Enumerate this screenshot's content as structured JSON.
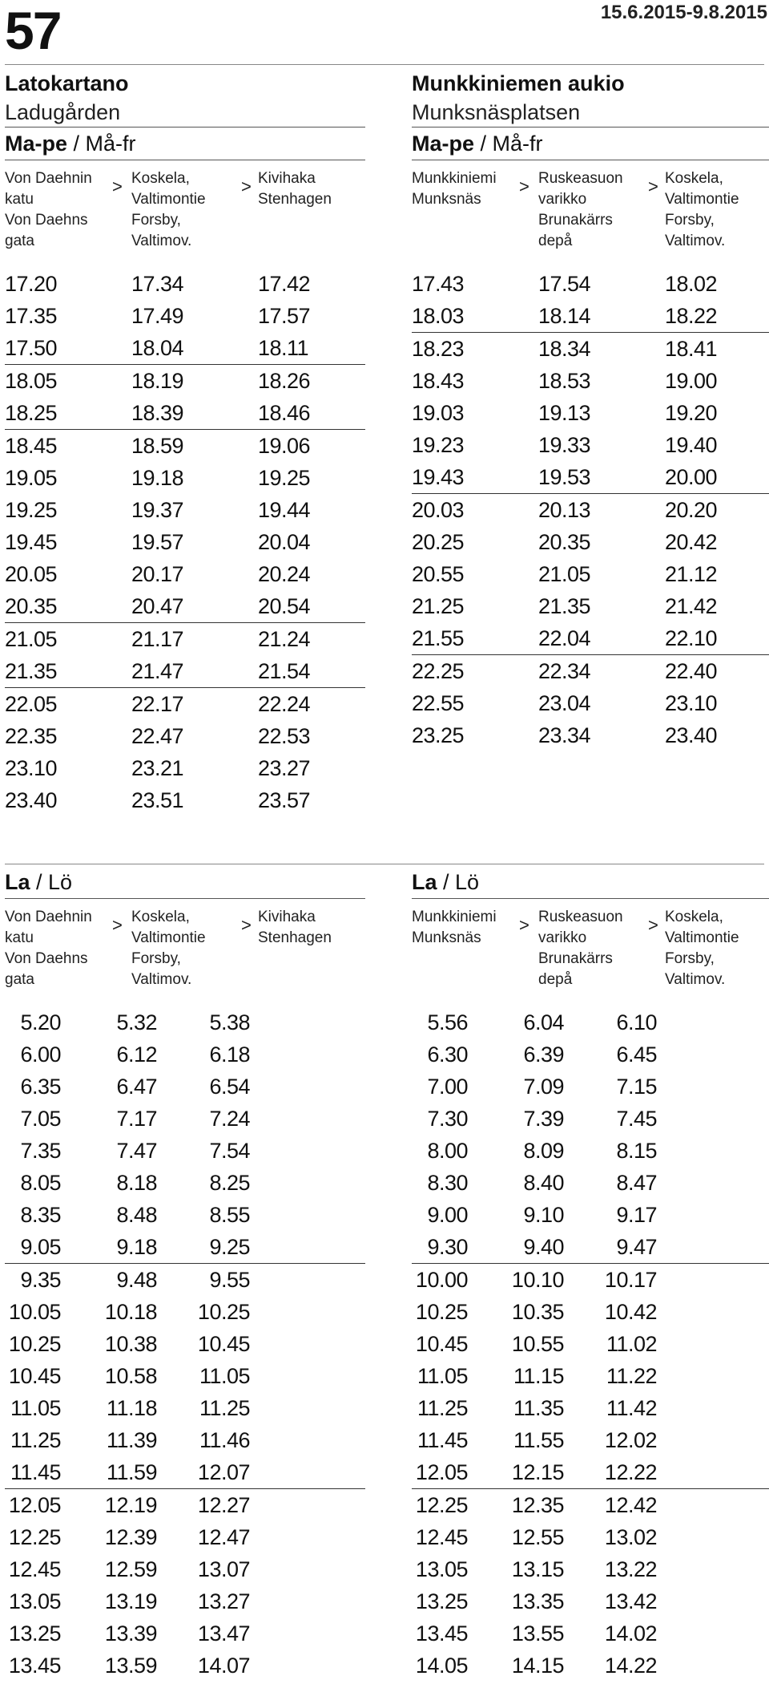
{
  "header": {
    "route": "57",
    "period": "15.6.2015-9.8.2015"
  },
  "left_stop": {
    "fi": "Latokartano",
    "sv": "Ladugården"
  },
  "right_stop": {
    "fi": "Munkkiniemen aukio",
    "sv": "Munksnäsplatsen"
  },
  "weekday": {
    "fi": "Ma-pe",
    "sep": " / ",
    "sv": "Må-fr"
  },
  "saturday": {
    "fi": "La",
    "sep": " / ",
    "sv": "Lö"
  },
  "arrow": ">",
  "left_headers": [
    [
      "Von Daehnin",
      "katu",
      "Von Daehns",
      "gata"
    ],
    [
      "Koskela,",
      "Valtimontie",
      "Forsby,",
      "Valtimov."
    ],
    [
      "Kivihaka",
      "Stenhagen"
    ]
  ],
  "right_headers": [
    [
      "Munkkiniemi",
      "Munksnäs"
    ],
    [
      "Ruskeasuon",
      "varikko",
      "Brunakärrs",
      "depå"
    ],
    [
      "Koskela,",
      "Valtimontie",
      "Forsby,",
      "Valtimov."
    ]
  ],
  "weekday_left_rows": [
    [
      "17.20",
      "17.34",
      "17.42"
    ],
    [
      "17.35",
      "17.49",
      "17.57"
    ],
    [
      "17.50",
      "18.04",
      "18.11"
    ],
    [
      "18.05",
      "18.19",
      "18.26"
    ],
    [
      "18.25",
      "18.39",
      "18.46"
    ],
    [
      "18.45",
      "18.59",
      "19.06"
    ],
    [
      "19.05",
      "19.18",
      "19.25"
    ],
    [
      "19.25",
      "19.37",
      "19.44"
    ],
    [
      "19.45",
      "19.57",
      "20.04"
    ],
    [
      "20.05",
      "20.17",
      "20.24"
    ],
    [
      "20.35",
      "20.47",
      "20.54"
    ],
    [
      "21.05",
      "21.17",
      "21.24"
    ],
    [
      "21.35",
      "21.47",
      "21.54"
    ],
    [
      "22.05",
      "22.17",
      "22.24"
    ],
    [
      "22.35",
      "22.47",
      "22.53"
    ],
    [
      "23.10",
      "23.21",
      "23.27"
    ],
    [
      "23.40",
      "23.51",
      "23.57"
    ]
  ],
  "weekday_right_rows": [
    [
      "17.43",
      "17.54",
      "18.02"
    ],
    [
      "18.03",
      "18.14",
      "18.22"
    ],
    [
      "18.23",
      "18.34",
      "18.41"
    ],
    [
      "18.43",
      "18.53",
      "19.00"
    ],
    [
      "19.03",
      "19.13",
      "19.20"
    ],
    [
      "19.23",
      "19.33",
      "19.40"
    ],
    [
      "19.43",
      "19.53",
      "20.00"
    ],
    [
      "20.03",
      "20.13",
      "20.20"
    ],
    [
      "20.25",
      "20.35",
      "20.42"
    ],
    [
      "20.55",
      "21.05",
      "21.12"
    ],
    [
      "21.25",
      "21.35",
      "21.42"
    ],
    [
      "21.55",
      "22.04",
      "22.10"
    ],
    [
      "22.25",
      "22.34",
      "22.40"
    ],
    [
      "22.55",
      "23.04",
      "23.10"
    ],
    [
      "23.25",
      "23.34",
      "23.40"
    ]
  ],
  "saturday_left_rows": [
    [
      "5.20",
      "5.32",
      "5.38"
    ],
    [
      "6.00",
      "6.12",
      "6.18"
    ],
    [
      "6.35",
      "6.47",
      "6.54"
    ],
    [
      "7.05",
      "7.17",
      "7.24"
    ],
    [
      "7.35",
      "7.47",
      "7.54"
    ],
    [
      "8.05",
      "8.18",
      "8.25"
    ],
    [
      "8.35",
      "8.48",
      "8.55"
    ],
    [
      "9.05",
      "9.18",
      "9.25"
    ],
    [
      "9.35",
      "9.48",
      "9.55"
    ],
    [
      "10.05",
      "10.18",
      "10.25"
    ],
    [
      "10.25",
      "10.38",
      "10.45"
    ],
    [
      "10.45",
      "10.58",
      "11.05"
    ],
    [
      "11.05",
      "11.18",
      "11.25"
    ],
    [
      "11.25",
      "11.39",
      "11.46"
    ],
    [
      "11.45",
      "11.59",
      "12.07"
    ],
    [
      "12.05",
      "12.19",
      "12.27"
    ],
    [
      "12.25",
      "12.39",
      "12.47"
    ],
    [
      "12.45",
      "12.59",
      "13.07"
    ],
    [
      "13.05",
      "13.19",
      "13.27"
    ],
    [
      "13.25",
      "13.39",
      "13.47"
    ],
    [
      "13.45",
      "13.59",
      "14.07"
    ]
  ],
  "saturday_right_rows": [
    [
      "5.56",
      "6.04",
      "6.10"
    ],
    [
      "6.30",
      "6.39",
      "6.45"
    ],
    [
      "7.00",
      "7.09",
      "7.15"
    ],
    [
      "7.30",
      "7.39",
      "7.45"
    ],
    [
      "8.00",
      "8.09",
      "8.15"
    ],
    [
      "8.30",
      "8.40",
      "8.47"
    ],
    [
      "9.00",
      "9.10",
      "9.17"
    ],
    [
      "9.30",
      "9.40",
      "9.47"
    ],
    [
      "10.00",
      "10.10",
      "10.17"
    ],
    [
      "10.25",
      "10.35",
      "10.42"
    ],
    [
      "10.45",
      "10.55",
      "11.02"
    ],
    [
      "11.05",
      "11.15",
      "11.22"
    ],
    [
      "11.25",
      "11.35",
      "11.42"
    ],
    [
      "11.45",
      "11.55",
      "12.02"
    ],
    [
      "12.05",
      "12.15",
      "12.22"
    ],
    [
      "12.25",
      "12.35",
      "12.42"
    ],
    [
      "12.45",
      "12.55",
      "13.02"
    ],
    [
      "13.05",
      "13.15",
      "13.22"
    ],
    [
      "13.25",
      "13.35",
      "13.42"
    ],
    [
      "13.45",
      "13.55",
      "14.02"
    ],
    [
      "14.05",
      "14.15",
      "14.22"
    ]
  ]
}
